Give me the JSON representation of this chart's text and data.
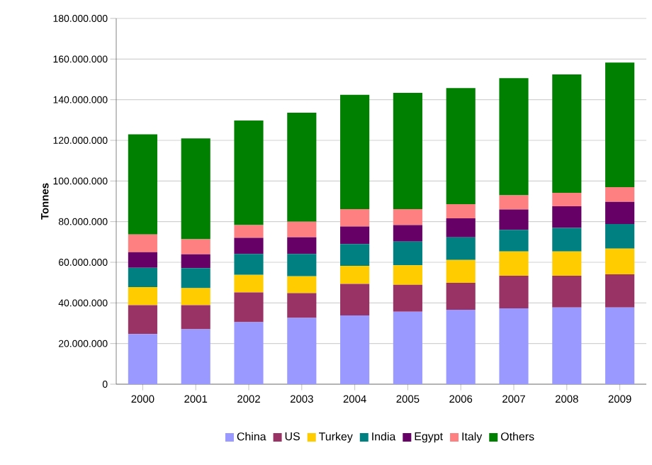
{
  "chart_data": {
    "type": "bar",
    "stacked": true,
    "ylabel": "Tonnes",
    "categories": [
      "2000",
      "2001",
      "2002",
      "2003",
      "2004",
      "2005",
      "2006",
      "2007",
      "2008",
      "2009"
    ],
    "series": [
      {
        "name": "China",
        "color": "#9999ff",
        "values": [
          24700000,
          27000000,
          30500000,
          32600000,
          33800000,
          35700000,
          36600000,
          37300000,
          37800000,
          37800000
        ]
      },
      {
        "name": "US",
        "color": "#993366",
        "values": [
          14200000,
          11900000,
          14700000,
          12200000,
          15600000,
          13200000,
          13300000,
          16100000,
          15600000,
          16300000
        ]
      },
      {
        "name": "Turkey",
        "color": "#ffcc00",
        "values": [
          8900000,
          8400000,
          8600000,
          8300000,
          8900000,
          9600000,
          11200000,
          11900000,
          11900000,
          12600000
        ]
      },
      {
        "name": "India",
        "color": "#008080",
        "values": [
          9500000,
          9800000,
          10300000,
          11000000,
          10700000,
          11700000,
          11200000,
          10700000,
          11600000,
          12100000
        ]
      },
      {
        "name": "Egypt",
        "color": "#660066",
        "values": [
          7700000,
          6800000,
          7900000,
          8200000,
          8600000,
          8100000,
          9300000,
          10000000,
          10700000,
          10900000
        ]
      },
      {
        "name": "Italy",
        "color": "#ff8080",
        "values": [
          8700000,
          7400000,
          6300000,
          7700000,
          8600000,
          7900000,
          7000000,
          7000000,
          6600000,
          7300000
        ]
      },
      {
        "name": "Others",
        "color": "#008000",
        "values": [
          49300000,
          49700000,
          51500000,
          53600000,
          56200000,
          57200000,
          57100000,
          57600000,
          58200000,
          61300000
        ]
      }
    ],
    "ylim": [
      0,
      180000000
    ],
    "yticks": [
      0,
      {
        "value": 20000000,
        "label": "20.000.000"
      },
      {
        "value": 40000000,
        "label": "40.000.000"
      },
      {
        "value": 60000000,
        "label": "60.000.000"
      },
      {
        "value": 80000000,
        "label": "80.000.000"
      },
      {
        "value": 100000000,
        "label": "100.000.000"
      },
      {
        "value": 120000000,
        "label": "120.000.000"
      },
      {
        "value": 140000000,
        "label": "140.000.000"
      },
      {
        "value": 160000000,
        "label": "160.000.000"
      },
      {
        "value": 180000000,
        "label": "180.000.000"
      }
    ],
    "grid": "y",
    "legend": "bottom"
  }
}
